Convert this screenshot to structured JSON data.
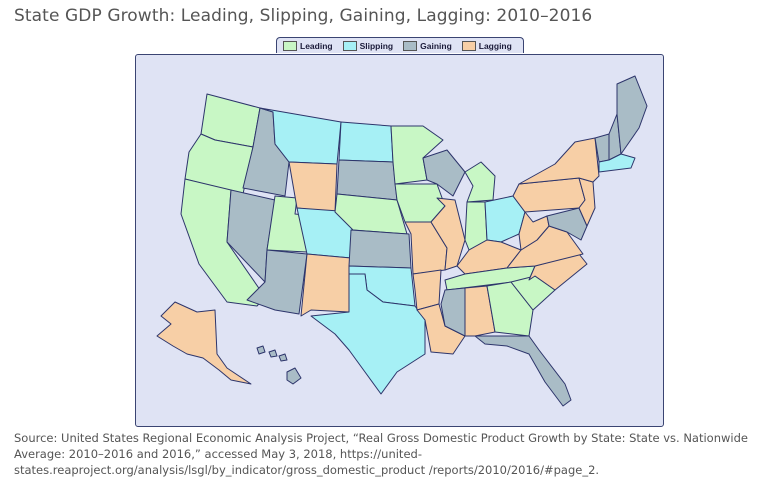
{
  "title": "State GDP Growth: Leading, Slipping, Gaining, Lagging: 2010–2016",
  "legend": [
    {
      "label": "Leading",
      "color": "#c8f7c5"
    },
    {
      "label": "Slipping",
      "color": "#a6f0f5"
    },
    {
      "label": "Gaining",
      "color": "#a9bcc6"
    },
    {
      "label": "Lagging",
      "color": "#f7cfa6"
    }
  ],
  "colors": {
    "leading": "#c8f7c5",
    "slipping": "#a6f0f5",
    "gaining": "#a9bcc6",
    "lagging": "#f7cfa6",
    "border": "#2d356b",
    "background": "#dfe3f4"
  },
  "states": {
    "WA": "leading",
    "OR": "leading",
    "CA": "leading",
    "UT": "leading",
    "ID": "gaining",
    "NV": "gaining",
    "AZ": "gaining",
    "MT": "slipping",
    "WY": "lagging",
    "CO": "slipping",
    "NM": "lagging",
    "ND": "slipping",
    "SD": "gaining",
    "NE": "leading",
    "KS": "gaining",
    "OK": "slipping",
    "TX": "slipping",
    "MN": "leading",
    "IA": "leading",
    "MO": "lagging",
    "AR": "lagging",
    "LA": "lagging",
    "WI": "gaining",
    "IL": "lagging",
    "MI": "leading",
    "IN": "leading",
    "OH": "slipping",
    "KY": "lagging",
    "TN": "leading",
    "MS": "gaining",
    "AL": "lagging",
    "GA": "leading",
    "FL": "gaining",
    "SC": "leading",
    "NC": "lagging",
    "VA": "lagging",
    "WV": "lagging",
    "PA": "lagging",
    "NY": "lagging",
    "VT": "gaining",
    "NH": "gaining",
    "ME": "gaining",
    "MA": "slipping",
    "NJ": "lagging",
    "MD": "gaining",
    "AK": "lagging",
    "HI": "gaining"
  },
  "source": "Source: United States Regional Economic Analysis Project, “Real Gross Domestic Product Growth by State: State vs. Nationwide Average: 2010–2016 and 2016,” accessed May 3, 2018, https://united-states.reaproject.org/analysis/lsgl/by_indicator/gross_domestic_product /reports/2010/2016/#page_2."
}
